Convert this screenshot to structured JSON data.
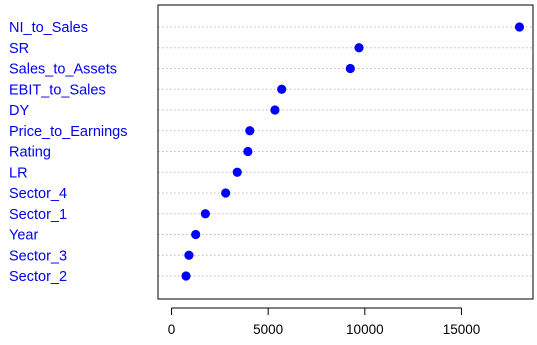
{
  "chart_data": {
    "type": "scatter",
    "title": "",
    "xlabel": "",
    "ylabel": "",
    "categories": [
      "NI_to_Sales",
      "SR",
      "Sales_to_Assets",
      "EBIT_to_Sales",
      "DY",
      "Price_to_Earnings",
      "Rating",
      "LR",
      "Sector_4",
      "Sector_1",
      "Year",
      "Sector_3",
      "Sector_2"
    ],
    "values": [
      18000,
      9700,
      9250,
      5700,
      5350,
      4050,
      3950,
      3400,
      2800,
      1750,
      1250,
      900,
      750
    ],
    "xlim": [
      -700,
      18700
    ],
    "xticks": [
      0,
      5000,
      10000,
      15000
    ],
    "xtick_labels": [
      "0",
      "5000",
      "10000",
      "15000"
    ],
    "grid": "dotted horizontal lines",
    "label_color": "#0000ee",
    "point_color": "#0000ff"
  }
}
